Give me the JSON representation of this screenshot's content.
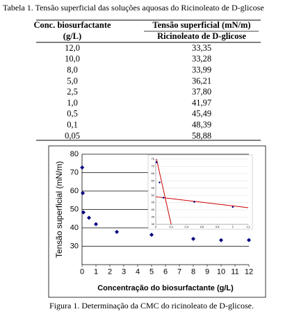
{
  "caption": "Tabela 1. Tensão superficial das soluções aquosas do Ricinoleato de D-glicose",
  "table": {
    "header": [
      "Conc. biosurfactante",
      "Tensão superficial (mN/m)"
    ],
    "subheader": [
      "(g/L)",
      "Ricinoleato de D-glicose"
    ],
    "rows": [
      [
        "12,0",
        "33,35"
      ],
      [
        "10,0",
        "33,28"
      ],
      [
        "8,0",
        "33,99"
      ],
      [
        "5,0",
        "36,21"
      ],
      [
        "2,5",
        "37,80"
      ],
      [
        "1,0",
        "41,97"
      ],
      [
        "0,5",
        "45,49"
      ],
      [
        "0,1",
        "48,39"
      ],
      [
        "0,05",
        "58,88"
      ]
    ]
  },
  "chart_data": [
    {
      "type": "scatter",
      "x_label": "Concentração do biosurfactante (g/L)",
      "y_label": "Tensão superficial (mN/m)",
      "x": [
        0.01,
        0.05,
        0.1,
        0.5,
        1,
        2.5,
        5,
        8,
        10,
        12
      ],
      "series": [
        {
          "color": "#000080",
          "values": [
            72.8,
            58.88,
            48.39,
            45.49,
            41.97,
            37.8,
            36.21,
            33.99,
            33.28,
            33.35
          ]
        }
      ],
      "xlim": [
        0,
        12
      ],
      "xticks": [
        0,
        1,
        2,
        3,
        4,
        5,
        6,
        7,
        8,
        9,
        10,
        11,
        12
      ],
      "ylim": [
        20,
        80
      ],
      "yticks": [
        30,
        40,
        50,
        60,
        70,
        80
      ],
      "grid": true
    },
    {
      "type": "scatter",
      "x": [
        0.01,
        0.05,
        0.1,
        0.5,
        1
      ],
      "series": [
        {
          "color": "#000080",
          "values": [
            72.8,
            58.88,
            48.39,
            45.49,
            41.97
          ]
        }
      ],
      "lines": [
        {
          "color": "#cc0000",
          "x": [
            0.01,
            0.2
          ],
          "values": [
            75,
            30
          ]
        },
        {
          "color": "#cc0000",
          "x": [
            0,
            1.2
          ],
          "values": [
            49,
            41.5
          ]
        }
      ],
      "xlim": [
        0,
        1.2
      ],
      "xticks": [
        0,
        {
          "value": 0.2,
          "label": "0,2"
        },
        {
          "value": 0.4,
          "label": "0,4"
        },
        {
          "value": 0.6,
          "label": "0,6"
        },
        {
          "value": 0.8,
          "label": "0,8"
        },
        1,
        {
          "value": 1.2,
          "label": "1,2"
        }
      ],
      "ylim": [
        30,
        75
      ],
      "yticks": [
        30,
        35,
        40,
        45,
        50,
        55,
        60,
        65,
        70,
        75
      ],
      "grid": true
    }
  ],
  "figure_caption": "Figura 1. Determinação da CMC do ricinoleato de D-glicose."
}
